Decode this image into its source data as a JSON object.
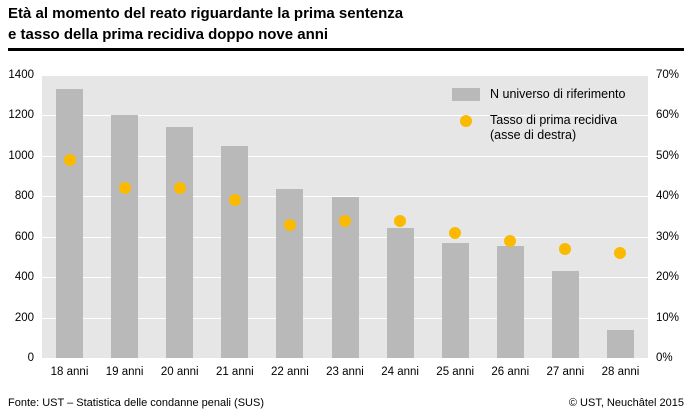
{
  "header": {
    "title_line1": "Età al momento del reato riguardante la prima sentenza",
    "title_line2": "e tasso della prima recidiva doppo nove anni"
  },
  "legend": {
    "bar_label": "N universo di riferimento",
    "dot_label_line1": "Tasso di prima recidiva",
    "dot_label_line2": "(asse di destra)"
  },
  "footer": {
    "source": "Fonte: UST – Statistica delle condanne penali (SUS)",
    "copyright": "© UST, Neuchâtel 2015"
  },
  "chart_data": {
    "type": "bar",
    "title": "Età al momento del reato riguardante la prima sentenza e tasso della prima recidiva doppo nove anni",
    "categories": [
      "18 anni",
      "19 anni",
      "20 anni",
      "21 anni",
      "22 anni",
      "23 anni",
      "24 anni",
      "25 anni",
      "26 anni",
      "27 anni",
      "28 anni"
    ],
    "series": [
      {
        "name": "N universo di riferimento",
        "type": "bar",
        "axis": "left",
        "color": "#b9b9b9",
        "values": [
          1330,
          1200,
          1145,
          1050,
          835,
          795,
          645,
          570,
          555,
          430,
          140
        ]
      },
      {
        "name": "Tasso di prima recidiva (asse di destra)",
        "type": "scatter",
        "axis": "right",
        "color": "#fbba00",
        "values": [
          49,
          42,
          42,
          39,
          33,
          34,
          34,
          31,
          29,
          27,
          26
        ]
      }
    ],
    "left_axis": {
      "min": 0,
      "max": 1400,
      "step": 200
    },
    "right_axis": {
      "min": 0,
      "max": 70,
      "step": 10,
      "suffix": "%"
    },
    "grid": "horizontal-white-lines",
    "legend_position": "top-right-inside",
    "plot_background": "#e6e6e6"
  }
}
